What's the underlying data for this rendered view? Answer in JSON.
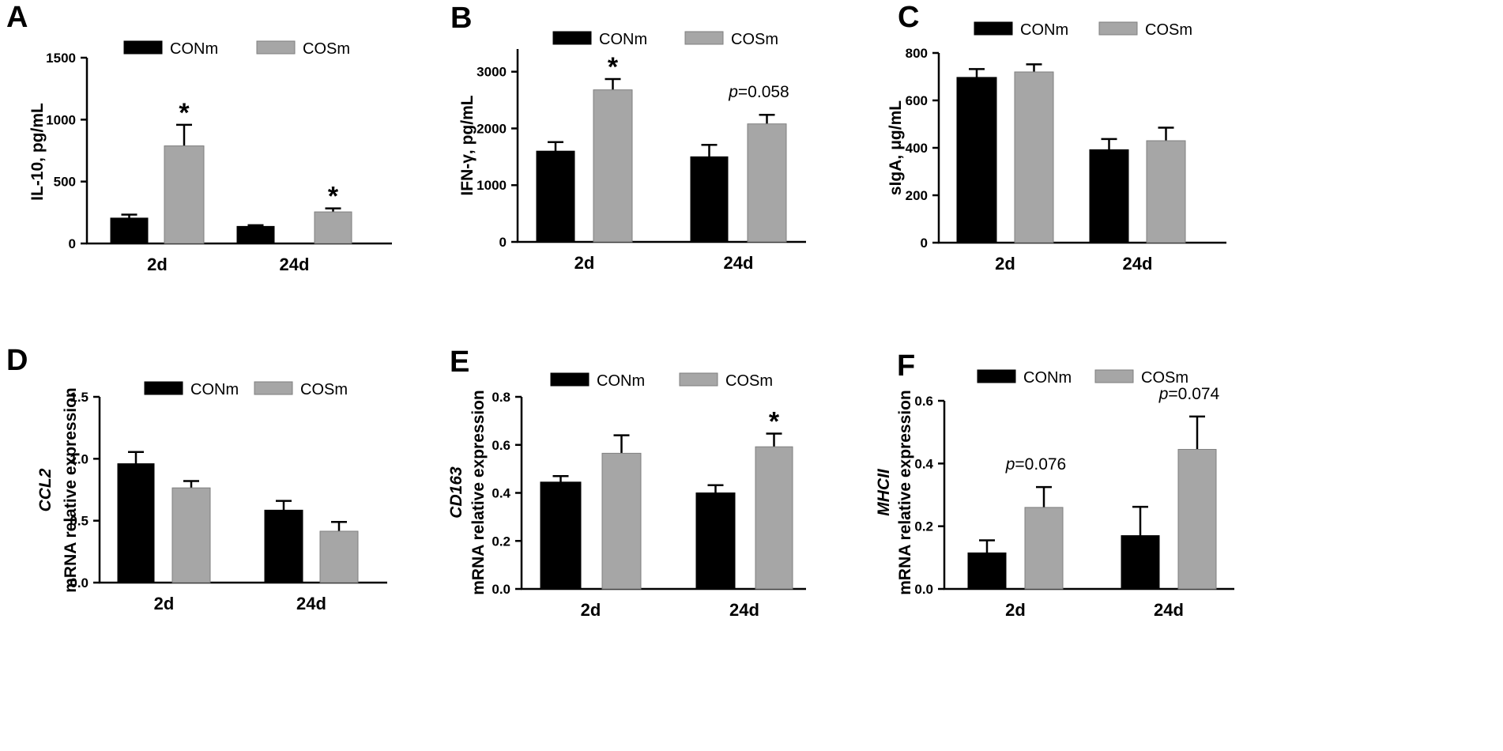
{
  "figure": {
    "legend": {
      "series": [
        {
          "name": "CONm",
          "color": "#000000"
        },
        {
          "name": "COSm",
          "color": "#a6a6a6"
        }
      ]
    }
  },
  "chart_data": [
    {
      "panel": "A",
      "type": "bar",
      "categories": [
        "2d",
        "24d"
      ],
      "ylabel": "IL-10, pg/mL",
      "ylabel_italic": "",
      "ylim": [
        0,
        1500
      ],
      "yticks": [
        "0",
        "500",
        "1000",
        "1500"
      ],
      "legend_position": "top",
      "series": [
        {
          "name": "CONm",
          "color": "#000000",
          "values": [
            205,
            138
          ],
          "errors": [
            28,
            10
          ]
        },
        {
          "name": "COSm",
          "color": "#a6a6a6",
          "values": [
            788,
            255
          ],
          "errors": [
            170,
            28
          ]
        }
      ],
      "annotations": [
        {
          "category": 0,
          "series": 1,
          "text": "*",
          "italic_prefix": ""
        },
        {
          "category": 1,
          "series": 1,
          "text": "*",
          "italic_prefix": ""
        }
      ]
    },
    {
      "panel": "B",
      "type": "bar",
      "categories": [
        "2d",
        "24d"
      ],
      "ylabel": "IFN-γ, pg/mL",
      "ylabel_italic": "",
      "ylim": [
        0,
        3400
      ],
      "yticks": [
        "0",
        "1000",
        "2000",
        "3000"
      ],
      "legend_position": "top",
      "series": [
        {
          "name": "CONm",
          "color": "#000000",
          "values": [
            1600,
            1500
          ],
          "errors": [
            160,
            210
          ]
        },
        {
          "name": "COSm",
          "color": "#a6a6a6",
          "values": [
            2680,
            2080
          ],
          "errors": [
            190,
            160
          ]
        }
      ],
      "annotations": [
        {
          "category": 0,
          "series": 1,
          "text": "*",
          "italic_prefix": ""
        },
        {
          "category": 1,
          "series": 1,
          "text": "=0.058",
          "italic_prefix": "p"
        }
      ]
    },
    {
      "panel": "C",
      "type": "bar",
      "categories": [
        "2d",
        "24d"
      ],
      "ylabel": "sIgA, μg/mL",
      "ylabel_italic": "",
      "ylim": [
        0,
        800
      ],
      "yticks": [
        "0",
        "200",
        "400",
        "600",
        "800"
      ],
      "legend_position": "top",
      "series": [
        {
          "name": "CONm",
          "color": "#000000",
          "values": [
            697,
            392
          ],
          "errors": [
            35,
            45
          ]
        },
        {
          "name": "COSm",
          "color": "#a6a6a6",
          "values": [
            720,
            430
          ],
          "errors": [
            32,
            55
          ]
        }
      ],
      "annotations": []
    },
    {
      "panel": "D",
      "type": "bar",
      "categories": [
        "2d",
        "24d"
      ],
      "ylabel": "mRNA relative expression",
      "ylabel_italic": "CCL2",
      "ylim": [
        0,
        1.5
      ],
      "yticks": [
        "0.0",
        "0.5",
        "1.0",
        "1.5"
      ],
      "legend_position": "top",
      "series": [
        {
          "name": "CONm",
          "color": "#000000",
          "values": [
            0.96,
            0.585
          ],
          "errors": [
            0.095,
            0.075
          ]
        },
        {
          "name": "COSm",
          "color": "#a6a6a6",
          "values": [
            0.765,
            0.415
          ],
          "errors": [
            0.055,
            0.075
          ]
        }
      ],
      "annotations": []
    },
    {
      "panel": "E",
      "type": "bar",
      "categories": [
        "2d",
        "24d"
      ],
      "ylabel": "mRNA relative expression",
      "ylabel_italic": "CD163",
      "ylim": [
        0,
        0.8
      ],
      "yticks": [
        "0.0",
        "0.2",
        "0.4",
        "0.6",
        "0.8"
      ],
      "legend_position": "top",
      "series": [
        {
          "name": "CONm",
          "color": "#000000",
          "values": [
            0.445,
            0.4
          ],
          "errors": [
            0.025,
            0.032
          ]
        },
        {
          "name": "COSm",
          "color": "#a6a6a6",
          "values": [
            0.565,
            0.592
          ],
          "errors": [
            0.075,
            0.055
          ]
        }
      ],
      "annotations": [
        {
          "category": 1,
          "series": 1,
          "text": "*",
          "italic_prefix": ""
        }
      ]
    },
    {
      "panel": "F",
      "type": "bar",
      "categories": [
        "2d",
        "24d"
      ],
      "ylabel": "mRNA relative expression",
      "ylabel_italic": "MHCII",
      "ylim": [
        0,
        0.6
      ],
      "yticks": [
        "0.0",
        "0.2",
        "0.4",
        "0.6"
      ],
      "legend_position": "top",
      "series": [
        {
          "name": "CONm",
          "color": "#000000",
          "values": [
            0.115,
            0.17
          ],
          "errors": [
            0.04,
            0.092
          ]
        },
        {
          "name": "COSm",
          "color": "#a6a6a6",
          "values": [
            0.26,
            0.445
          ],
          "errors": [
            0.065,
            0.105
          ]
        }
      ],
      "annotations": [
        {
          "category": 0,
          "series": 1,
          "text": "=0.076",
          "italic_prefix": "p"
        },
        {
          "category": 1,
          "series": 1,
          "text": "=0.074",
          "italic_prefix": "p"
        }
      ]
    }
  ]
}
